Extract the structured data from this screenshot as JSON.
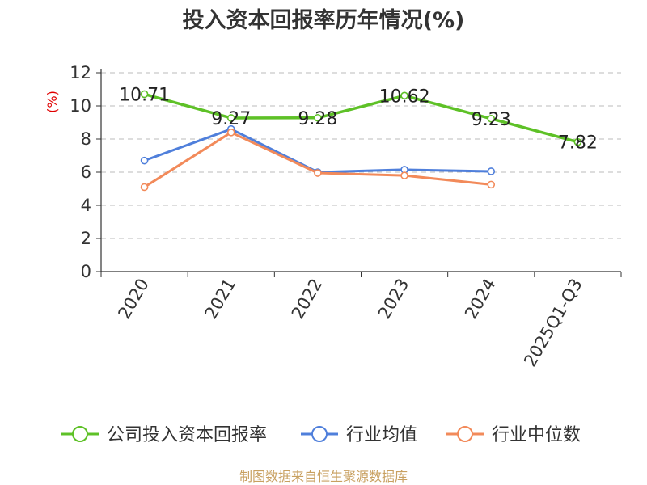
{
  "title": "投入资本回报率历年情况(%)",
  "source": "制图数据来自恒生聚源数据库",
  "chart_data": {
    "type": "line",
    "title": "投入资本回报率历年情况(%)",
    "ylabel": "(%)",
    "xlabel": "",
    "categories": [
      "2020",
      "2021",
      "2022",
      "2023",
      "2024",
      "2025Q1-Q3"
    ],
    "ylim": [
      0,
      12
    ],
    "yticks": [
      0,
      2,
      4,
      6,
      8,
      10,
      12
    ],
    "grid": true,
    "legend_position": "bottom",
    "series": [
      {
        "name": "公司投入资本回报率",
        "color": "#5ec127",
        "values": [
          10.71,
          9.27,
          9.28,
          10.62,
          9.23,
          7.82
        ],
        "labels": [
          "10.71",
          "9.27",
          "9.28",
          "10.62",
          "9.23",
          "7.82"
        ]
      },
      {
        "name": "行业均值",
        "color": "#4f7fdb",
        "values": [
          6.7,
          8.6,
          6.0,
          6.15,
          6.05,
          null
        ]
      },
      {
        "name": "行业中位数",
        "color": "#f28a5a",
        "values": [
          5.1,
          8.4,
          5.95,
          5.8,
          5.25,
          null
        ]
      }
    ]
  }
}
